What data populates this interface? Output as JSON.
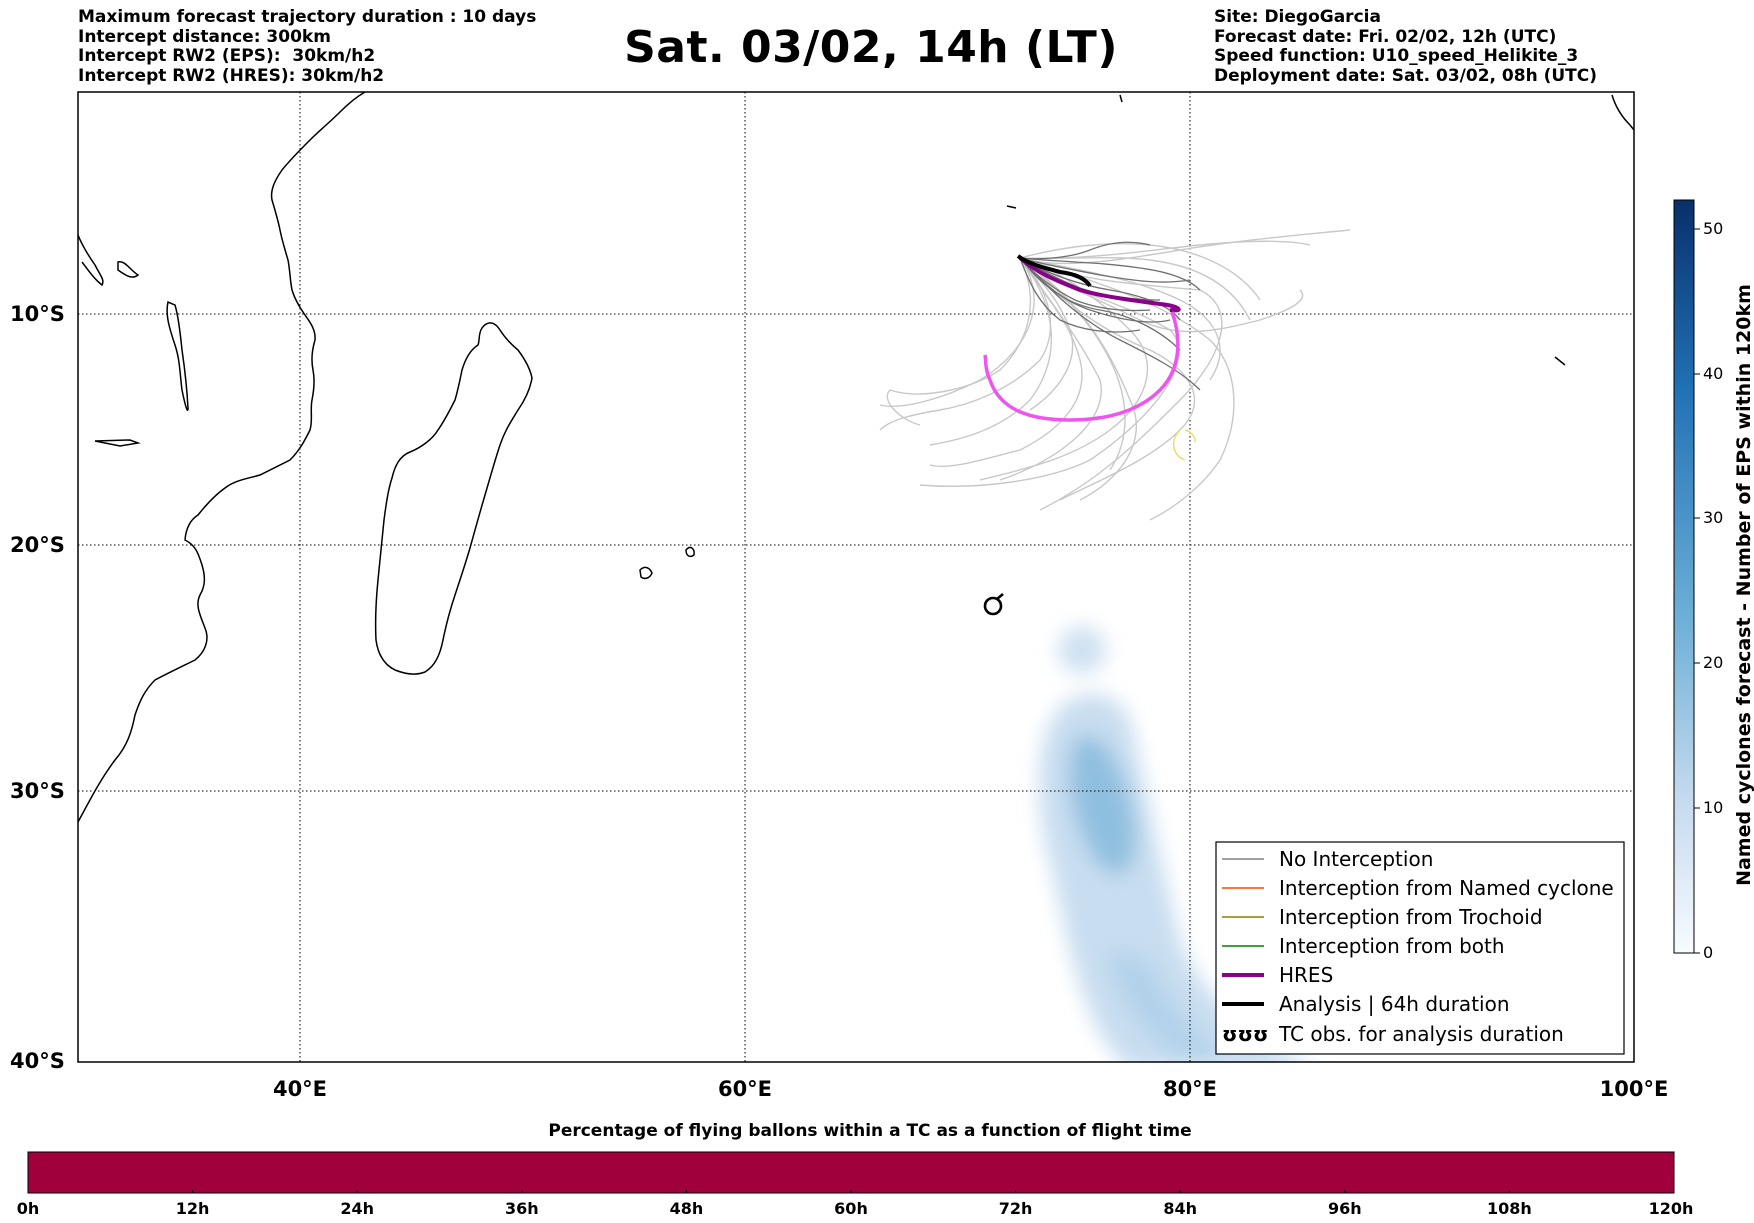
{
  "header": {
    "left_lines": [
      "Maximum forecast trajectory duration : 10 days",
      "Intercept distance: 300km",
      "Intercept RW2 (EPS):  30km/h2",
      "Intercept RW2 (HRES): 30km/h2"
    ],
    "title": "Sat. 03/02, 14h (LT)",
    "right_lines": [
      "Site: DiegoGarcia",
      "Forecast date: Fri. 02/02, 12h (UTC)",
      "Speed function: U10_speed_Helikite_3",
      "Deployment date: Sat. 03/02, 08h (UTC)"
    ]
  },
  "map": {
    "lat_labels": [
      "10°S",
      "20°S",
      "30°S",
      "40°S"
    ],
    "lon_labels": [
      "40°E",
      "60°E",
      "80°E",
      "100°E"
    ],
    "tc_symbol": "cyclone-symbol-icon"
  },
  "legend": {
    "items": [
      {
        "label": "No Interception",
        "color": "#808080"
      },
      {
        "label": "Interception from Named cyclone",
        "color": "#ff4500"
      },
      {
        "label": "Interception from Trochoid",
        "color": "#808000"
      },
      {
        "label": "Interception from both",
        "color": "#008000"
      },
      {
        "label": "HRES",
        "color": "#8b008b"
      },
      {
        "label": "Analysis | 64h duration",
        "color": "#000000"
      },
      {
        "label": "TC obs. for analysis duration",
        "color": "#000000"
      }
    ],
    "tc_symbols": "ʊʊʊ"
  },
  "colorbar": {
    "label": "Named cyclones forecast - Number of EPS within 120km",
    "ticks": [
      "0",
      "10",
      "20",
      "30",
      "40",
      "50"
    ],
    "range": [
      0,
      52
    ],
    "colormap": [
      "#deebf7",
      "#9ecae1",
      "#4292c6",
      "#08306b"
    ]
  },
  "time_bar": {
    "title": "Percentage of flying ballons within a TC as a function of flight time",
    "ticks": [
      "0h",
      "12h",
      "24h",
      "36h",
      "48h",
      "60h",
      "72h",
      "84h",
      "96h",
      "108h",
      "120h"
    ],
    "fill_color": "#a0003c"
  }
}
